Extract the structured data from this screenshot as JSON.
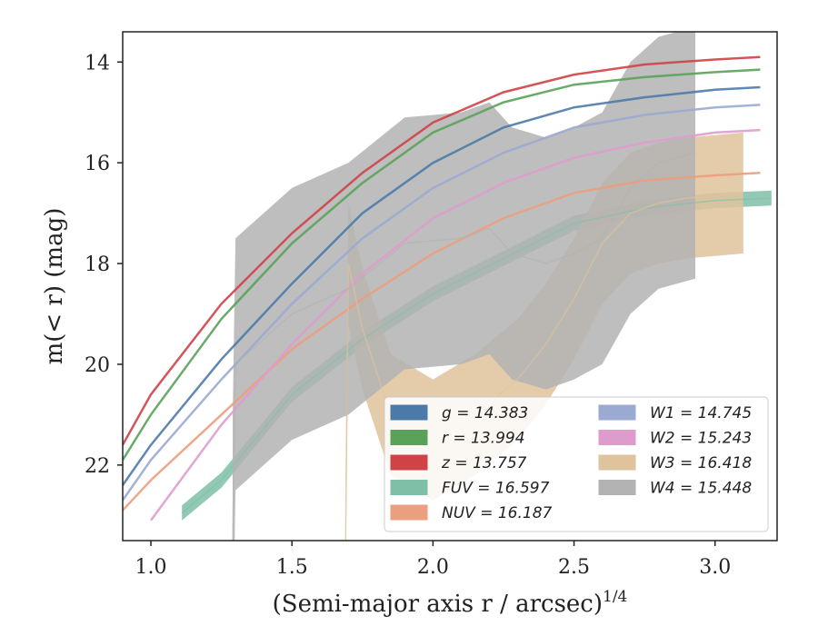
{
  "chart_data": {
    "type": "line",
    "title": "",
    "xlabel": "(Semi-major axis r / arcsec)",
    "xlabel_superscript": "1/4",
    "ylabel": "m(< r) (mag)",
    "xlim": [
      0.9,
      3.22
    ],
    "ylim": [
      23.5,
      13.4
    ],
    "y_inverted": true,
    "grid": false,
    "legend_position": "lower-right",
    "x_ticks": [
      1.0,
      1.5,
      2.0,
      2.5,
      3.0
    ],
    "x_tick_labels": [
      "1.0",
      "1.5",
      "2.0",
      "2.5",
      "3.0"
    ],
    "y_ticks": [
      14,
      16,
      18,
      20,
      22
    ],
    "y_tick_labels": [
      "14",
      "16",
      "18",
      "20",
      "22"
    ],
    "series": [
      {
        "name": "g",
        "legend_label": "g = 14.383",
        "color": "#4c7aa8",
        "x": [
          0.9,
          1.0,
          1.25,
          1.5,
          1.75,
          2.0,
          2.25,
          2.5,
          2.75,
          3.0,
          3.16
        ],
        "y": [
          22.4,
          21.6,
          19.9,
          18.4,
          17.0,
          16.0,
          15.3,
          14.9,
          14.7,
          14.55,
          14.5
        ],
        "band_halfwidth": 0.05
      },
      {
        "name": "r",
        "legend_label": "r = 13.994",
        "color": "#5aa25a",
        "x": [
          0.9,
          1.0,
          1.25,
          1.5,
          1.75,
          2.0,
          2.25,
          2.5,
          2.75,
          3.0,
          3.16
        ],
        "y": [
          21.9,
          21.0,
          19.1,
          17.6,
          16.4,
          15.4,
          14.8,
          14.45,
          14.3,
          14.2,
          14.15
        ],
        "band_halfwidth": 0.05
      },
      {
        "name": "z",
        "legend_label": "z = 13.757",
        "color": "#cf4247",
        "x": [
          0.9,
          1.0,
          1.25,
          1.5,
          1.75,
          2.0,
          2.25,
          2.5,
          2.75,
          3.0,
          3.16
        ],
        "y": [
          21.6,
          20.6,
          18.8,
          17.4,
          16.2,
          15.2,
          14.6,
          14.25,
          14.05,
          13.95,
          13.9
        ],
        "band_halfwidth": 0.05
      },
      {
        "name": "FUV",
        "legend_label": "FUV = 16.597",
        "color": "#7fbfa8",
        "x": [
          1.11,
          1.25,
          1.5,
          1.75,
          2.0,
          2.25,
          2.5,
          2.75,
          3.0,
          3.2
        ],
        "y": [
          22.95,
          22.3,
          20.6,
          19.5,
          18.6,
          17.9,
          17.2,
          16.9,
          16.75,
          16.7
        ],
        "band_halfwidth": 0.15
      },
      {
        "name": "NUV",
        "legend_label": "NUV = 16.187",
        "color": "#eb9f7e",
        "x": [
          0.9,
          1.0,
          1.25,
          1.5,
          1.75,
          2.0,
          2.25,
          2.5,
          2.75,
          3.0,
          3.16
        ],
        "y": [
          22.9,
          22.3,
          21.0,
          19.7,
          18.7,
          17.8,
          17.1,
          16.6,
          16.35,
          16.25,
          16.2
        ],
        "band_halfwidth": 0.05
      },
      {
        "name": "W1",
        "legend_label": "W1 = 14.745",
        "color": "#9aaad2",
        "x": [
          0.9,
          1.0,
          1.25,
          1.5,
          1.75,
          2.0,
          2.25,
          2.5,
          2.75,
          3.0,
          3.16
        ],
        "y": [
          22.7,
          21.9,
          20.3,
          18.8,
          17.5,
          16.5,
          15.8,
          15.3,
          15.05,
          14.9,
          14.85
        ],
        "band_halfwidth": 0.05
      },
      {
        "name": "W2",
        "legend_label": "W2 = 15.243",
        "color": "#de9ccc",
        "x": [
          1.0,
          1.25,
          1.5,
          1.75,
          2.0,
          2.25,
          2.5,
          2.75,
          3.0,
          3.16
        ],
        "y": [
          23.1,
          21.2,
          19.6,
          18.2,
          17.1,
          16.4,
          15.9,
          15.6,
          15.4,
          15.35
        ],
        "band_halfwidth": 0.05
      },
      {
        "name": "W3",
        "legend_label": "W3 = 16.418",
        "color": "#dfc39c",
        "x": [
          1.69,
          1.7,
          1.75,
          1.85,
          2.0,
          2.15,
          2.3,
          2.4,
          2.5,
          2.6,
          2.7,
          2.8,
          2.9,
          3.0,
          3.1
        ],
        "y": [
          23.5,
          18.0,
          19.3,
          21.0,
          21.5,
          21.0,
          20.3,
          19.6,
          18.7,
          17.6,
          17.0,
          16.8,
          16.7,
          16.65,
          16.6
        ],
        "band_halfwidth": 1.2
      },
      {
        "name": "W4",
        "legend_label": "W4 = 15.448",
        "color": "#b3b3b3",
        "x": [
          1.29,
          1.3,
          1.5,
          1.7,
          1.9,
          2.1,
          2.2,
          2.28,
          2.4,
          2.5,
          2.6,
          2.7,
          2.8,
          2.93
        ],
        "y": [
          23.5,
          20.0,
          19.0,
          18.5,
          17.6,
          17.5,
          17.3,
          17.8,
          18.0,
          17.8,
          17.5,
          16.5,
          16.0,
          15.8
        ],
        "band_halfwidth": 2.5
      }
    ]
  }
}
